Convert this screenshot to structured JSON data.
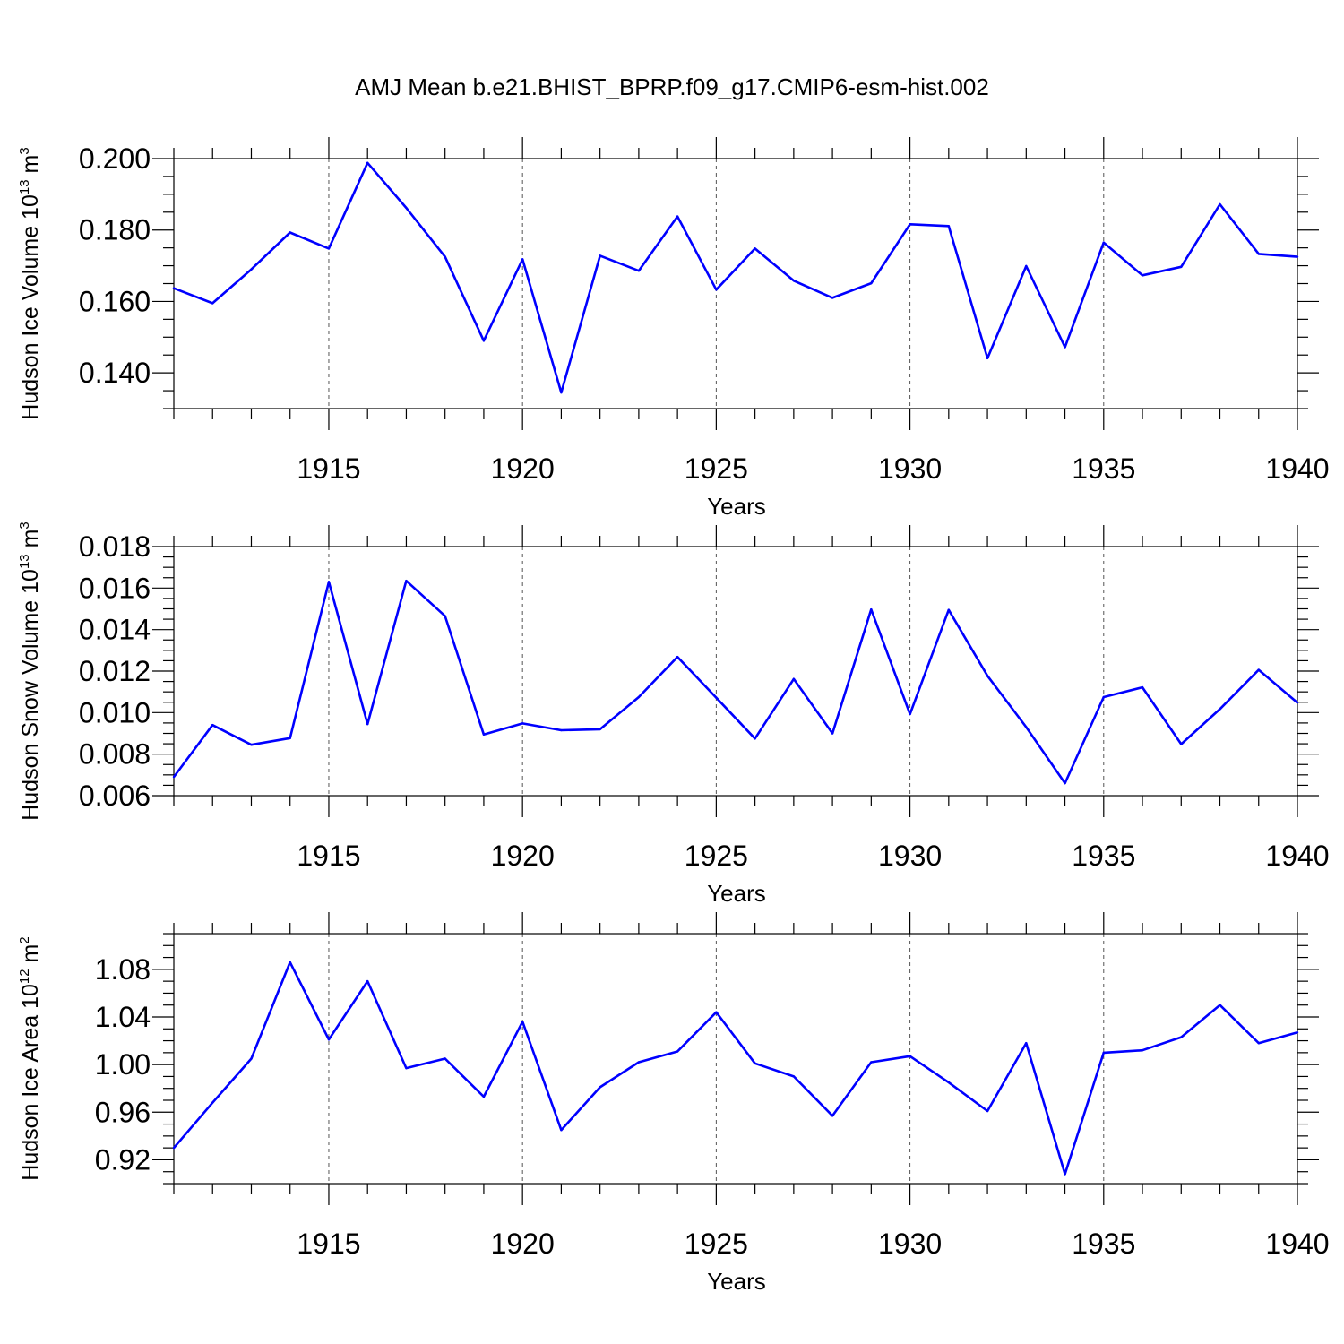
{
  "figure_title": "AMJ Mean b.e21.BHIST_BPRP.f09_g17.CMIP6-esm-hist.002",
  "colors": {
    "line": "#0000ff",
    "frame": "#000000",
    "grid": "#555555"
  },
  "chart_data": [
    {
      "type": "line",
      "ylabel": {
        "main": "Hudson Ice Volume 10",
        "exp": "13",
        "unit": " m",
        "unit_exp": "3"
      },
      "xlabel": "Years",
      "xlim": [
        1911,
        1940
      ],
      "ylim": [
        0.13,
        0.2
      ],
      "yticks": [
        0.14,
        0.16,
        0.18,
        0.2
      ],
      "ytick_labels": [
        "0.140",
        "0.160",
        "0.180",
        "0.200"
      ],
      "yminor_step": 0.005,
      "xticks": [
        1915,
        1920,
        1925,
        1930,
        1935,
        1940
      ],
      "xtick_labels": [
        "1915",
        "1920",
        "1925",
        "1930",
        "1935",
        "1940"
      ],
      "grid": "dashed vertical at major x ticks",
      "x": [
        1911,
        1912,
        1913,
        1914,
        1915,
        1916,
        1917,
        1918,
        1919,
        1920,
        1921,
        1922,
        1923,
        1924,
        1925,
        1926,
        1927,
        1928,
        1929,
        1930,
        1931,
        1932,
        1933,
        1934,
        1935,
        1936,
        1937,
        1938,
        1939,
        1940
      ],
      "series": [
        {
          "values": [
            0.1637,
            0.1595,
            0.169,
            0.1793,
            0.1748,
            0.1988,
            0.1862,
            0.1725,
            0.149,
            0.1718,
            0.1345,
            0.1728,
            0.1686,
            0.1838,
            0.1633,
            0.1748,
            0.1658,
            0.161,
            0.1651,
            0.1816,
            0.1811,
            0.1441,
            0.1699,
            0.1472,
            0.1765,
            0.1673,
            0.1697,
            0.1872,
            0.1733,
            0.1725
          ]
        }
      ]
    },
    {
      "type": "line",
      "ylabel": {
        "main": "Hudson Snow Volume 10",
        "exp": "13",
        "unit": " m",
        "unit_exp": "3"
      },
      "xlabel": "Years",
      "xlim": [
        1911,
        1940
      ],
      "ylim": [
        0.006,
        0.018
      ],
      "yticks": [
        0.006,
        0.008,
        0.01,
        0.012,
        0.014,
        0.016,
        0.018
      ],
      "ytick_labels": [
        "0.006",
        "0.008",
        "0.010",
        "0.012",
        "0.014",
        "0.016",
        "0.018"
      ],
      "yminor_step": 0.0005,
      "xticks": [
        1915,
        1920,
        1925,
        1930,
        1935,
        1940
      ],
      "xtick_labels": [
        "1915",
        "1920",
        "1925",
        "1930",
        "1935",
        "1940"
      ],
      "grid": "dashed vertical at major x ticks",
      "x": [
        1911,
        1912,
        1913,
        1914,
        1915,
        1916,
        1917,
        1918,
        1919,
        1920,
        1921,
        1922,
        1923,
        1924,
        1925,
        1926,
        1927,
        1928,
        1929,
        1930,
        1931,
        1932,
        1933,
        1934,
        1935,
        1936,
        1937,
        1938,
        1939,
        1940
      ],
      "series": [
        {
          "values": [
            0.0069,
            0.0094,
            0.00845,
            0.00877,
            0.0163,
            0.00945,
            0.01635,
            0.01465,
            0.00895,
            0.00948,
            0.00915,
            0.0092,
            0.01075,
            0.01268,
            0.01072,
            0.00875,
            0.01162,
            0.009,
            0.01497,
            0.00993,
            0.01495,
            0.01177,
            0.0093,
            0.0066,
            0.01075,
            0.01122,
            0.00848,
            0.01017,
            0.01206,
            0.01048
          ]
        }
      ]
    },
    {
      "type": "line",
      "ylabel": {
        "main": "Hudson Ice Area 10",
        "exp": "12",
        "unit": " m",
        "unit_exp": "2"
      },
      "xlabel": "Years",
      "xlim": [
        1911,
        1940
      ],
      "ylim": [
        0.9,
        1.11
      ],
      "yticks": [
        0.92,
        0.96,
        1.0,
        1.04,
        1.08
      ],
      "ytick_labels": [
        "0.92",
        "0.96",
        "1.00",
        "1.04",
        "1.08"
      ],
      "yminor_step": 0.01,
      "xticks": [
        1915,
        1920,
        1925,
        1930,
        1935,
        1940
      ],
      "xtick_labels": [
        "1915",
        "1920",
        "1925",
        "1930",
        "1935",
        "1940"
      ],
      "grid": "dashed vertical at major x ticks",
      "x": [
        1911,
        1912,
        1913,
        1914,
        1915,
        1916,
        1917,
        1918,
        1919,
        1920,
        1921,
        1922,
        1923,
        1924,
        1925,
        1926,
        1927,
        1928,
        1929,
        1930,
        1931,
        1932,
        1933,
        1934,
        1935,
        1936,
        1937,
        1938,
        1939,
        1940
      ],
      "series": [
        {
          "values": [
            0.93,
            0.968,
            1.005,
            1.086,
            1.021,
            1.07,
            0.997,
            1.005,
            0.973,
            1.036,
            0.945,
            0.981,
            1.002,
            1.011,
            1.044,
            1.001,
            0.99,
            0.957,
            1.002,
            1.007,
            0.985,
            0.961,
            1.018,
            0.908,
            1.01,
            1.012,
            1.023,
            1.05,
            1.018,
            1.027
          ]
        }
      ]
    }
  ]
}
